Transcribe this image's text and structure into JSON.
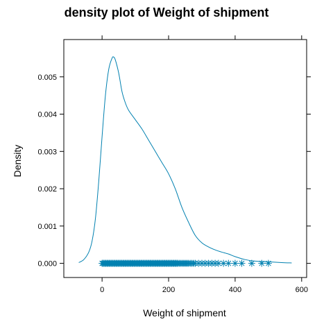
{
  "chart_data": {
    "type": "line",
    "title": "density plot of Weight of shipment",
    "xlabel": "Weight of shipment",
    "ylabel": "Density",
    "xlim": [
      -115,
      615
    ],
    "ylim": [
      -0.00038,
      0.006
    ],
    "x_ticks": [
      {
        "value": 0,
        "label": "0"
      },
      {
        "value": 200,
        "label": "200"
      },
      {
        "value": 400,
        "label": "400"
      },
      {
        "value": 600,
        "label": "600"
      }
    ],
    "y_ticks": [
      {
        "value": 0.0,
        "label": "0.000"
      },
      {
        "value": 0.001,
        "label": "0.001"
      },
      {
        "value": 0.002,
        "label": "0.002"
      },
      {
        "value": 0.003,
        "label": "0.003"
      },
      {
        "value": 0.004,
        "label": "0.004"
      },
      {
        "value": 0.005,
        "label": "0.005"
      }
    ],
    "line_color": "#0080b0",
    "series": [
      {
        "kind": "density",
        "x": [
          -70,
          -55,
          -40,
          -30,
          -20,
          -10,
          0,
          10,
          20,
          30,
          35,
          40,
          50,
          60,
          70,
          80,
          100,
          120,
          140,
          160,
          180,
          200,
          220,
          240,
          260,
          280,
          300,
          320,
          340,
          360,
          380,
          400,
          430,
          460,
          500,
          540,
          570
        ],
        "y": [
          2e-05,
          0.0001,
          0.0003,
          0.0006,
          0.0012,
          0.0022,
          0.0034,
          0.0045,
          0.0052,
          0.0055,
          0.00553,
          0.00545,
          0.0051,
          0.0046,
          0.0043,
          0.0041,
          0.00385,
          0.0036,
          0.0033,
          0.003,
          0.0027,
          0.0024,
          0.002,
          0.0015,
          0.0011,
          0.00075,
          0.00055,
          0.00044,
          0.00036,
          0.0003,
          0.00025,
          0.00018,
          0.0001,
          6e-05,
          4e-05,
          2e-05,
          1e-05
        ]
      },
      {
        "kind": "rug",
        "marker": "asterisk",
        "x": [
          0,
          3,
          6,
          9,
          12,
          15,
          18,
          21,
          24,
          27,
          30,
          33,
          36,
          39,
          42,
          45,
          48,
          51,
          54,
          57,
          60,
          63,
          66,
          69,
          72,
          75,
          78,
          81,
          84,
          87,
          90,
          93,
          96,
          99,
          102,
          105,
          108,
          111,
          114,
          117,
          120,
          123,
          126,
          129,
          132,
          135,
          138,
          141,
          144,
          147,
          150,
          153,
          156,
          159,
          162,
          165,
          168,
          171,
          174,
          177,
          180,
          183,
          186,
          189,
          192,
          195,
          198,
          201,
          204,
          207,
          210,
          213,
          216,
          219,
          222,
          225,
          228,
          232,
          236,
          240,
          244,
          248,
          252,
          256,
          260,
          265,
          270,
          275,
          280,
          290,
          300,
          310,
          320,
          330,
          340,
          350,
          365,
          380,
          400,
          420,
          450,
          480,
          500
        ]
      }
    ]
  }
}
